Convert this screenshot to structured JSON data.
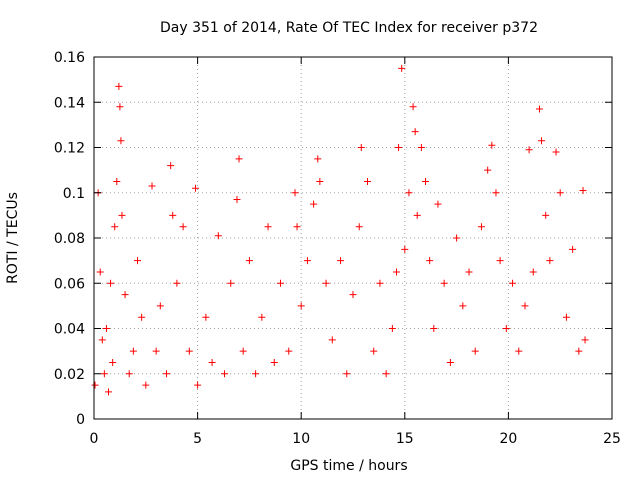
{
  "chart_data": {
    "type": "scatter",
    "title": "Day 351 of 2014, Rate Of TEC Index for receiver p372",
    "xlabel": "GPS time / hours",
    "ylabel": "ROTI / TECUs",
    "xlim": [
      0,
      25
    ],
    "ylim": [
      0,
      0.16
    ],
    "xticks": [
      0,
      5,
      10,
      15,
      20,
      25
    ],
    "xtick_labels": [
      "0",
      "5",
      "10",
      "15",
      "20",
      "25"
    ],
    "yticks": [
      0,
      0.02,
      0.04,
      0.06,
      0.08,
      0.1,
      0.12,
      0.14,
      0.16
    ],
    "ytick_labels": [
      "0",
      "0.02",
      "0.04",
      "0.06",
      "0.08",
      "0.1",
      "0.12",
      "0.14",
      "0.16"
    ],
    "grid": true,
    "marker": "+",
    "marker_color": "#ff0000",
    "series": [
      {
        "name": "ROTI",
        "x": [
          0.05,
          0.2,
          0.3,
          0.4,
          0.5,
          0.6,
          0.7,
          0.8,
          0.9,
          1.0,
          1.1,
          1.2,
          1.25,
          1.3,
          1.35,
          1.5,
          1.7,
          1.9,
          2.1,
          2.3,
          2.5,
          2.8,
          3.0,
          3.2,
          3.5,
          3.7,
          3.8,
          4.0,
          4.3,
          4.6,
          4.9,
          5.0,
          5.4,
          5.7,
          6.0,
          6.3,
          6.6,
          6.9,
          7.0,
          7.2,
          7.5,
          7.8,
          8.1,
          8.4,
          8.7,
          9.0,
          9.4,
          9.7,
          9.8,
          10.0,
          10.3,
          10.6,
          10.8,
          10.9,
          11.2,
          11.5,
          11.9,
          12.2,
          12.5,
          12.8,
          12.9,
          13.2,
          13.5,
          13.8,
          14.1,
          14.4,
          14.6,
          14.7,
          14.85,
          15.0,
          15.2,
          15.4,
          15.5,
          15.6,
          15.8,
          16.0,
          16.2,
          16.4,
          16.6,
          16.9,
          17.2,
          17.5,
          17.8,
          18.1,
          18.4,
          18.7,
          19.0,
          19.2,
          19.4,
          19.6,
          19.9,
          20.2,
          20.5,
          20.8,
          21.0,
          21.2,
          21.5,
          21.6,
          21.8,
          22.0,
          22.3,
          22.5,
          22.8,
          23.1,
          23.4,
          23.6,
          23.7
        ],
        "y": [
          0.015,
          0.1,
          0.065,
          0.035,
          0.02,
          0.04,
          0.012,
          0.06,
          0.025,
          0.085,
          0.105,
          0.147,
          0.138,
          0.123,
          0.09,
          0.055,
          0.02,
          0.03,
          0.07,
          0.045,
          0.015,
          0.103,
          0.03,
          0.05,
          0.02,
          0.112,
          0.09,
          0.06,
          0.085,
          0.03,
          0.102,
          0.015,
          0.045,
          0.025,
          0.081,
          0.02,
          0.06,
          0.097,
          0.115,
          0.03,
          0.07,
          0.02,
          0.045,
          0.085,
          0.025,
          0.06,
          0.03,
          0.1,
          0.085,
          0.05,
          0.07,
          0.095,
          0.115,
          0.105,
          0.06,
          0.035,
          0.07,
          0.02,
          0.055,
          0.085,
          0.12,
          0.105,
          0.03,
          0.06,
          0.02,
          0.04,
          0.065,
          0.12,
          0.155,
          0.075,
          0.1,
          0.138,
          0.127,
          0.09,
          0.12,
          0.105,
          0.07,
          0.04,
          0.095,
          0.06,
          0.025,
          0.08,
          0.05,
          0.065,
          0.03,
          0.085,
          0.11,
          0.121,
          0.1,
          0.07,
          0.04,
          0.06,
          0.03,
          0.05,
          0.119,
          0.065,
          0.137,
          0.123,
          0.09,
          0.07,
          0.118,
          0.1,
          0.045,
          0.075,
          0.03,
          0.101,
          0.035
        ]
      }
    ]
  }
}
